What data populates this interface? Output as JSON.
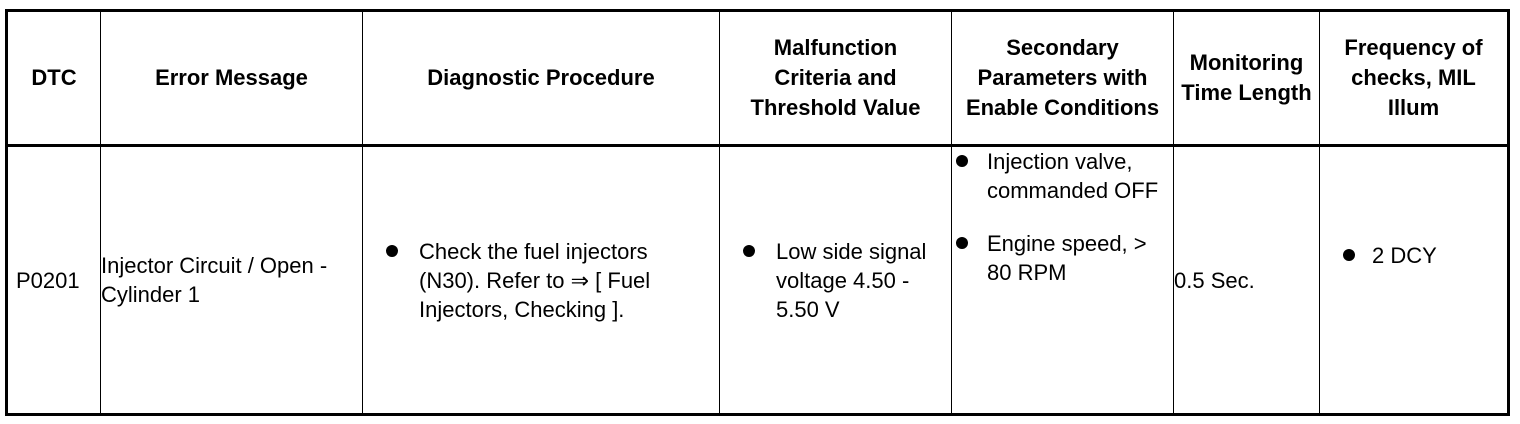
{
  "table": {
    "headers": {
      "dtc": "DTC",
      "error_message": "Error Message",
      "diagnostic_procedure": "Diagnostic Procedure",
      "malfunction_criteria": "Malfunction Criteria and Threshold Value",
      "secondary_parameters": "Secondary Parameters with Enable Conditions",
      "monitoring_time": "Monitoring Time Length",
      "frequency": "Frequency of checks, MIL Illum"
    },
    "rows": [
      {
        "dtc": "P0201",
        "error_message": "Injector Circuit / Open - Cylinder 1",
        "diagnostic_procedure": [
          "Check the fuel injectors (N30). Refer to ⇒ [ Fuel Injectors, Checking ]."
        ],
        "malfunction_criteria": [
          "Low side signal voltage 4.50 - 5.50 V"
        ],
        "secondary_parameters": [
          "Injection valve, commanded OFF",
          "Engine speed, > 80 RPM"
        ],
        "monitoring_time": "0.5 Sec.",
        "frequency": [
          "2 DCY"
        ]
      }
    ]
  }
}
